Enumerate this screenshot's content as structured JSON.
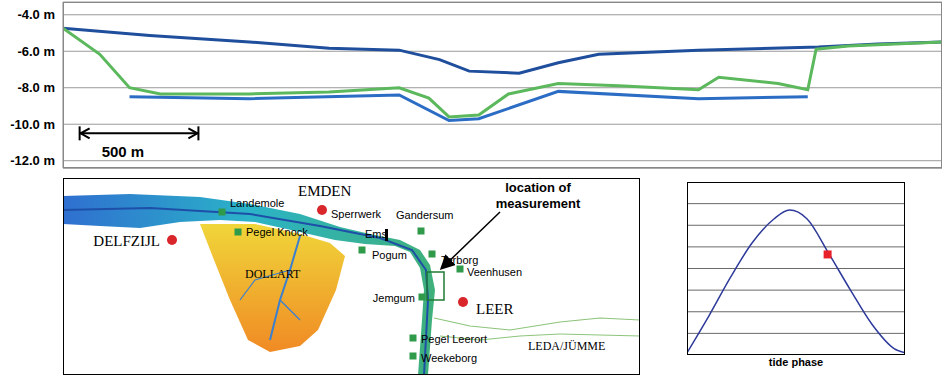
{
  "chart_data": [
    {
      "type": "line",
      "tick_labels": "y",
      "grid": true,
      "xlim": [
        0,
        3700
      ],
      "ylim": [
        -12.4,
        -3.3
      ],
      "yticks": [
        {
          "value": -4,
          "label": "-4.0 m"
        },
        {
          "value": -6,
          "label": "-6.0 m"
        },
        {
          "value": -8,
          "label": "-8.0 m"
        },
        {
          "value": -10,
          "label": "-10.0 m"
        },
        {
          "value": -12,
          "label": "-12.0 m"
        }
      ],
      "annotations": [
        {
          "text": "500 m",
          "x": [
            70,
            570
          ],
          "y": -10.5
        }
      ],
      "series": [
        {
          "color": "#1f4e9c",
          "x": [
            0,
            365,
            785,
            1120,
            1415,
            1585,
            1710,
            1920,
            2085,
            2255,
            2675,
            3180,
            3430,
            3700
          ],
          "values": [
            -4.74,
            -5.14,
            -5.49,
            -5.83,
            -5.94,
            -6.46,
            -7.09,
            -7.2,
            -6.63,
            -6.17,
            -5.94,
            -5.77,
            -5.6,
            -5.49
          ]
        },
        {
          "color": "#2b6cc4",
          "x": [
            280,
            785,
            1415,
            1625,
            1750,
            2085,
            2675,
            3135
          ],
          "values": [
            -8.5,
            -8.6,
            -8.4,
            -9.8,
            -9.7,
            -8.2,
            -8.6,
            -8.5
          ]
        },
        {
          "color": "#5cb85c",
          "x": [
            0,
            155,
            280,
            410,
            785,
            1120,
            1415,
            1540,
            1625,
            1750,
            1875,
            2085,
            2340,
            2675,
            2760,
            3010,
            3135,
            3170,
            3305,
            3700
          ],
          "values": [
            -4.74,
            -6.17,
            -8.0,
            -8.34,
            -8.34,
            -8.23,
            -8.0,
            -8.57,
            -9.6,
            -9.49,
            -8.34,
            -7.77,
            -7.89,
            -8.11,
            -7.43,
            -7.77,
            -8.11,
            -5.89,
            -5.71,
            -5.49
          ]
        }
      ]
    },
    {
      "type": "line",
      "x_label": "tide phase",
      "tick_labels": false,
      "grid": true,
      "xlim": [
        0,
        1
      ],
      "ylim": [
        0,
        8
      ],
      "yticks": [
        0,
        1,
        2,
        3,
        4,
        5,
        6,
        7,
        8
      ],
      "color": "#2d3a9a",
      "x": [
        0,
        0.1,
        0.2,
        0.3,
        0.4,
        0.47,
        0.55,
        0.65,
        0.75,
        0.85,
        0.95,
        1
      ],
      "values": [
        0.1,
        1.8,
        3.6,
        5.2,
        6.3,
        6.7,
        6.3,
        4.7,
        3.0,
        1.4,
        0.3,
        0.1
      ],
      "points": [
        {
          "x": 0.645,
          "y": 4.65,
          "color": "#e8202a",
          "marker": "square"
        }
      ]
    }
  ],
  "map": {
    "cities": [
      "DELFZIJL",
      "EMDEN",
      "LEER"
    ],
    "stations": [
      "Landemole",
      "Pegel Knock",
      "Gandersum",
      "Pogum",
      "Terborg",
      "Veenhusen",
      "Jemgum",
      "Pegel Leerort",
      "Weekeborg"
    ],
    "barrier": "Sperrwerk",
    "rivers": [
      "Ems",
      "LEDA/JÜMME"
    ],
    "region": "DOLLART",
    "annotation": "location of measurement"
  }
}
